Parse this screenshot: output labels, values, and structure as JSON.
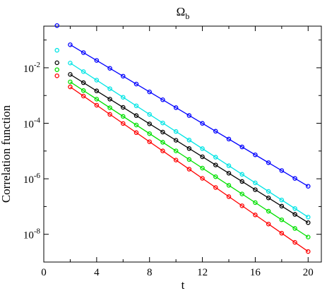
{
  "chart_data": {
    "type": "scatter",
    "title": "Ω",
    "title_subscript": "b",
    "xlabel": "t",
    "ylabel": "Correlation function",
    "xlim": [
      0,
      21
    ],
    "ylim_log10": [
      -9,
      -0.5
    ],
    "yscale": "log",
    "xticks": [
      0,
      4,
      8,
      12,
      16,
      20
    ],
    "xtick_labels": [
      "0",
      "4",
      "8",
      "12",
      "16",
      "20"
    ],
    "yticks_exp": [
      -2,
      -4,
      -6,
      -8
    ],
    "ytick_base": "10",
    "grid": false,
    "series": [
      {
        "color": "#0000ff",
        "log10_at_t1": -0.48,
        "log10_at_t2": -1.17,
        "log10_at_t20": -6.27
      },
      {
        "color": "#00e5e5",
        "log10_at_t1": -1.37,
        "log10_at_t2": -1.83,
        "log10_at_t20": -7.38
      },
      {
        "color": "#000000",
        "log10_at_t1": -1.82,
        "log10_at_t2": -2.24,
        "log10_at_t20": -7.58
      },
      {
        "color": "#00e000",
        "log10_at_t1": -2.07,
        "log10_at_t2": -2.51,
        "log10_at_t20": -8.1
      },
      {
        "color": "#ff0000",
        "log10_at_t1": -2.29,
        "log10_at_t2": -2.69,
        "log10_at_t20": -8.62
      }
    ]
  }
}
